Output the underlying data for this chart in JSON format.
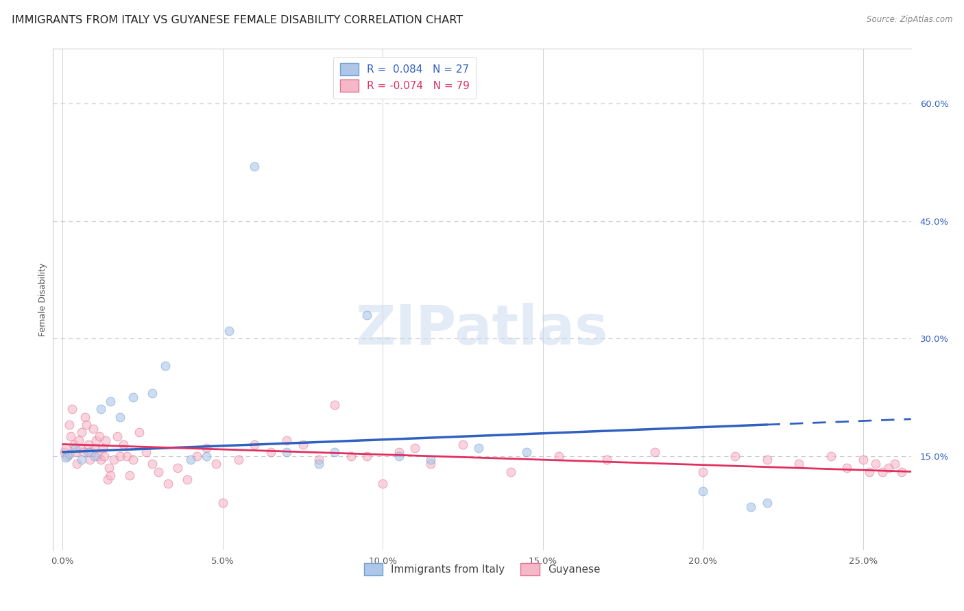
{
  "title": "IMMIGRANTS FROM ITALY VS GUYANESE FEMALE DISABILITY CORRELATION CHART",
  "source": "Source: ZipAtlas.com",
  "ylabel": "Female Disability",
  "x_tick_labels": [
    "0.0%",
    "5.0%",
    "10.0%",
    "15.0%",
    "20.0%",
    "25.0%"
  ],
  "x_tick_values": [
    0.0,
    5.0,
    10.0,
    15.0,
    20.0,
    25.0
  ],
  "y_tick_labels_right": [
    "15.0%",
    "30.0%",
    "45.0%",
    "60.0%"
  ],
  "y_tick_values": [
    15.0,
    30.0,
    45.0,
    60.0
  ],
  "y_min": 3.0,
  "y_max": 67.0,
  "x_min": -0.3,
  "x_max": 26.5,
  "blue_R": 0.084,
  "blue_N": 27,
  "pink_R": -0.074,
  "pink_N": 79,
  "legend_label_blue": "Immigrants from Italy",
  "legend_label_pink": "Guyanese",
  "blue_scatter_x": [
    0.1,
    0.2,
    0.4,
    0.6,
    0.8,
    1.0,
    1.2,
    1.5,
    1.8,
    2.2,
    2.8,
    3.2,
    4.0,
    4.5,
    5.2,
    6.0,
    7.0,
    8.0,
    8.5,
    9.5,
    10.5,
    11.5,
    13.0,
    14.5,
    20.0,
    21.5,
    22.0
  ],
  "blue_scatter_y": [
    14.8,
    15.2,
    16.0,
    14.5,
    15.5,
    15.0,
    21.0,
    22.0,
    20.0,
    22.5,
    23.0,
    26.5,
    14.5,
    15.0,
    31.0,
    52.0,
    15.5,
    14.0,
    15.5,
    33.0,
    15.0,
    14.5,
    16.0,
    15.5,
    10.5,
    8.5,
    9.0
  ],
  "pink_scatter_x": [
    0.05,
    0.1,
    0.15,
    0.2,
    0.25,
    0.3,
    0.35,
    0.4,
    0.45,
    0.5,
    0.55,
    0.6,
    0.65,
    0.7,
    0.75,
    0.8,
    0.85,
    0.9,
    0.95,
    1.0,
    1.05,
    1.1,
    1.15,
    1.2,
    1.25,
    1.3,
    1.35,
    1.4,
    1.45,
    1.5,
    1.6,
    1.7,
    1.8,
    1.9,
    2.0,
    2.1,
    2.2,
    2.4,
    2.6,
    2.8,
    3.0,
    3.3,
    3.6,
    3.9,
    4.2,
    4.5,
    4.8,
    5.0,
    5.5,
    6.0,
    6.5,
    7.0,
    7.5,
    8.0,
    8.5,
    9.0,
    9.5,
    10.0,
    10.5,
    11.0,
    11.5,
    12.5,
    14.0,
    15.5,
    17.0,
    18.5,
    20.0,
    21.0,
    22.0,
    23.0,
    24.0,
    24.5,
    25.0,
    25.2,
    25.4,
    25.6,
    25.8,
    26.0,
    26.2
  ],
  "pink_scatter_y": [
    15.5,
    16.0,
    15.0,
    19.0,
    17.5,
    21.0,
    16.5,
    15.5,
    14.0,
    17.0,
    16.0,
    18.0,
    15.5,
    20.0,
    19.0,
    16.5,
    14.5,
    15.5,
    18.5,
    16.0,
    17.0,
    15.0,
    17.5,
    14.5,
    16.0,
    15.0,
    17.0,
    12.0,
    13.5,
    12.5,
    14.5,
    17.5,
    15.0,
    16.5,
    15.0,
    12.5,
    14.5,
    18.0,
    15.5,
    14.0,
    13.0,
    11.5,
    13.5,
    12.0,
    15.0,
    16.0,
    14.0,
    9.0,
    14.5,
    16.5,
    15.5,
    17.0,
    16.5,
    14.5,
    21.5,
    15.0,
    15.0,
    11.5,
    15.5,
    16.0,
    14.0,
    16.5,
    13.0,
    15.0,
    14.5,
    15.5,
    13.0,
    15.0,
    14.5,
    14.0,
    15.0,
    13.5,
    14.5,
    13.0,
    14.0,
    13.0,
    13.5,
    14.0,
    13.0
  ],
  "blue_color": "#aec6e8",
  "blue_edge_color": "#6fa0d0",
  "pink_color": "#f5b8c8",
  "pink_edge_color": "#e07090",
  "blue_line_color": "#3060c0",
  "pink_line_color": "#e03060",
  "grid_color": "#cccccc",
  "watermark": "ZIPatlas",
  "background_color": "#ffffff",
  "title_fontsize": 11.5,
  "axis_label_fontsize": 9,
  "tick_fontsize": 9.5,
  "legend_fontsize": 11,
  "scatter_size": 85,
  "scatter_alpha": 0.6,
  "blue_trend_x0": 0.0,
  "blue_trend_x1": 26.5,
  "blue_solid_end": 22.0,
  "pink_trend_x0": 0.0,
  "pink_trend_x1": 26.5
}
